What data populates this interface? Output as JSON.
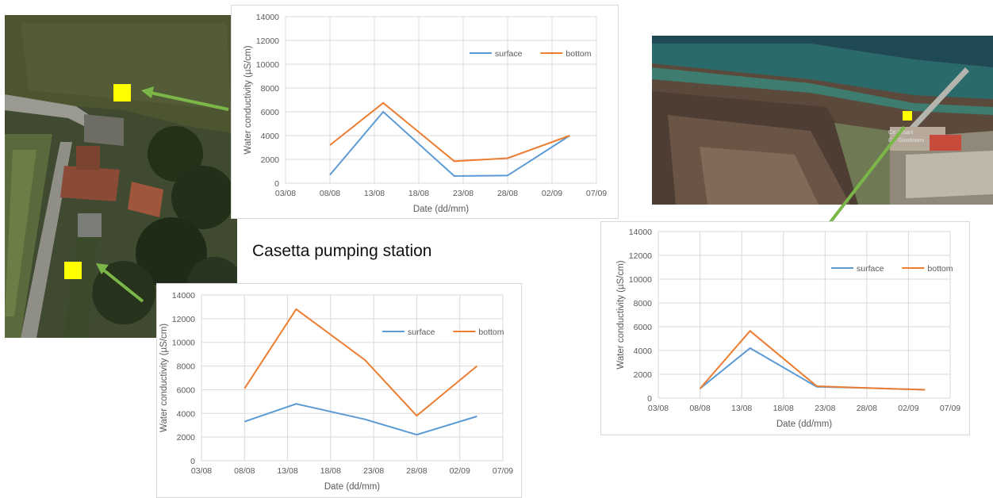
{
  "caption": "Casetta pumping station",
  "colors": {
    "surface": "#5b9bd5",
    "bottom": "#ed7d31",
    "grid": "#d9d9d9",
    "marker": "#ffff00",
    "arrow": "#7ab648"
  },
  "photos": [
    {
      "name": "aerial-photo-pumping-station",
      "description_icon": "satellite-image"
    },
    {
      "name": "aerial-photo-coastal-fields",
      "description_icon": "satellite-image"
    }
  ],
  "map_labels": {
    "label1": "Ca' Pisani",
    "label2": "Ca' Giustiniani"
  },
  "chart_data": [
    {
      "type": "line",
      "title": "",
      "xlabel": "Date (dd/mm)",
      "ylabel": "Water conductivity (µS/cm)",
      "x_ticks": [
        "03/08",
        "08/08",
        "13/08",
        "18/08",
        "23/08",
        "28/08",
        "02/09",
        "07/09"
      ],
      "y_ticks": [
        "0",
        "2000",
        "4000",
        "6000",
        "8000",
        "10000",
        "12000",
        "14000"
      ],
      "ylim": [
        0,
        14000
      ],
      "x": [
        "08/08",
        "14/08",
        "22/08",
        "28/08",
        "04/09"
      ],
      "series": [
        {
          "name": "surface",
          "values": [
            700,
            6000,
            600,
            650,
            4000
          ]
        },
        {
          "name": "bottom",
          "values": [
            3200,
            6750,
            1850,
            2100,
            4000
          ]
        }
      ],
      "legend": "top-right",
      "grid": true
    },
    {
      "type": "line",
      "title": "",
      "xlabel": "Date (dd/mm)",
      "ylabel": "Water conductivity (µS/cm)",
      "x_ticks": [
        "03/08",
        "08/08",
        "13/08",
        "18/08",
        "23/08",
        "28/08",
        "02/09",
        "07/09"
      ],
      "y_ticks": [
        "0",
        "2000",
        "4000",
        "6000",
        "8000",
        "10000",
        "12000",
        "14000"
      ],
      "ylim": [
        0,
        14000
      ],
      "x": [
        "08/08",
        "14/08",
        "22/08",
        "28/08",
        "04/09"
      ],
      "series": [
        {
          "name": "surface",
          "values": [
            3300,
            4800,
            3500,
            2200,
            3750
          ]
        },
        {
          "name": "bottom",
          "values": [
            6100,
            12800,
            8500,
            3800,
            8000
          ]
        }
      ],
      "legend": "top-right",
      "grid": true
    },
    {
      "type": "line",
      "title": "",
      "xlabel": "Date (dd/mm)",
      "ylabel": "Water conductivity (µS/cm)",
      "x_ticks": [
        "03/08",
        "08/08",
        "13/08",
        "18/08",
        "23/08",
        "28/08",
        "02/09",
        "07/09"
      ],
      "y_ticks": [
        "0",
        "2000",
        "4000",
        "6000",
        "8000",
        "10000",
        "12000",
        "14000"
      ],
      "ylim": [
        0,
        14000
      ],
      "x": [
        "08/08",
        "14/08",
        "22/08",
        "28/08",
        "04/09"
      ],
      "series": [
        {
          "name": "surface",
          "values": [
            800,
            4200,
            950,
            850,
            700
          ]
        },
        {
          "name": "bottom",
          "values": [
            800,
            5650,
            1000,
            850,
            700
          ]
        }
      ],
      "legend": "top-right",
      "grid": true
    }
  ]
}
